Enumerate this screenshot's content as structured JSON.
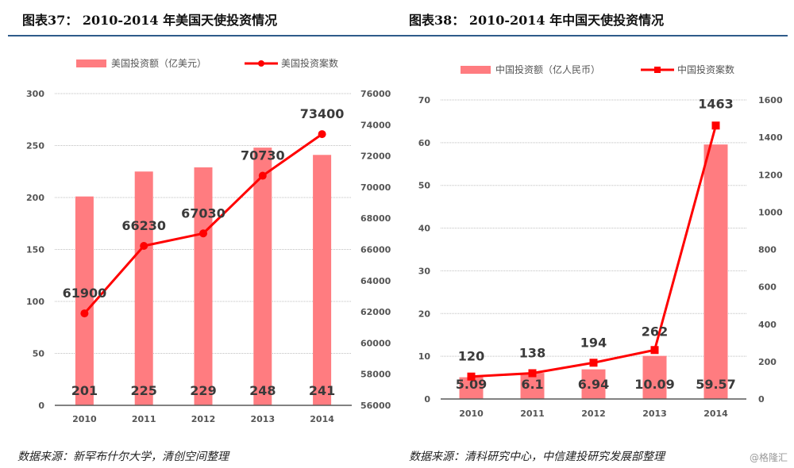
{
  "colors": {
    "bar": "#ff7c80",
    "line": "#ff0000",
    "rule": "#2f5b8a",
    "grid": "#bfbfbf",
    "axis": "#595959"
  },
  "left": {
    "title": "图表37：  2010-2014 年美国天使投资情况",
    "source": "数据来源：新罕布什尔大学，清创空间整理"
  },
  "right": {
    "title": "图表38：  2010-2014 年中国天使投资情况",
    "source": "数据来源：清科研究中心，中信建投研究发展部整理",
    "watermark": "@格隆汇"
  },
  "chart_data": [
    {
      "type": "bar+line",
      "title": "2010-2014 年美国天使投资情况",
      "categories": [
        "2010",
        "2011",
        "2012",
        "2013",
        "2014"
      ],
      "series": [
        {
          "name": "美国投资额（亿美元）",
          "type": "bar",
          "axis": "left",
          "values": [
            201,
            225,
            229,
            248,
            241
          ],
          "labels": [
            "201",
            "225",
            "229",
            "248",
            "241"
          ]
        },
        {
          "name": "美国投资案数",
          "type": "line",
          "axis": "right",
          "marker": "circle",
          "values": [
            61900,
            66230,
            67030,
            70730,
            73400
          ],
          "labels": [
            "61900",
            "66230",
            "67030",
            "70730",
            "73400"
          ]
        }
      ],
      "y_left": {
        "min": 0,
        "max": 300,
        "ticks": [
          "0",
          "50",
          "100",
          "150",
          "200",
          "250",
          "300"
        ]
      },
      "y_right": {
        "min": 56000,
        "max": 76000,
        "ticks": [
          "56000",
          "58000",
          "60000",
          "62000",
          "64000",
          "66000",
          "68000",
          "70000",
          "72000",
          "74000",
          "76000"
        ]
      },
      "grid": true,
      "legend": "top-center"
    },
    {
      "type": "bar+line",
      "title": "2010-2014 年中国天使投资情况",
      "categories": [
        "2010",
        "2011",
        "2012",
        "2013",
        "2014"
      ],
      "series": [
        {
          "name": "中国投资额（亿人民币）",
          "type": "bar",
          "axis": "left",
          "values": [
            5.09,
            6.1,
            6.94,
            10.09,
            59.57
          ],
          "labels": [
            "5.09",
            "6.1",
            "6.94",
            "10.09",
            "59.57"
          ]
        },
        {
          "name": "中国投资案数",
          "type": "line",
          "axis": "right",
          "marker": "square",
          "values": [
            120,
            138,
            194,
            262,
            1463
          ],
          "labels": [
            "120",
            "138",
            "194",
            "262",
            "1463"
          ]
        }
      ],
      "y_left": {
        "min": 0,
        "max": 70,
        "ticks": [
          "0",
          "10",
          "20",
          "30",
          "40",
          "50",
          "60",
          "70"
        ]
      },
      "y_right": {
        "min": 0,
        "max": 1600,
        "ticks": [
          "0",
          "200",
          "400",
          "600",
          "800",
          "1000",
          "1200",
          "1400",
          "1600"
        ]
      },
      "grid": true,
      "legend": "top-center"
    }
  ]
}
